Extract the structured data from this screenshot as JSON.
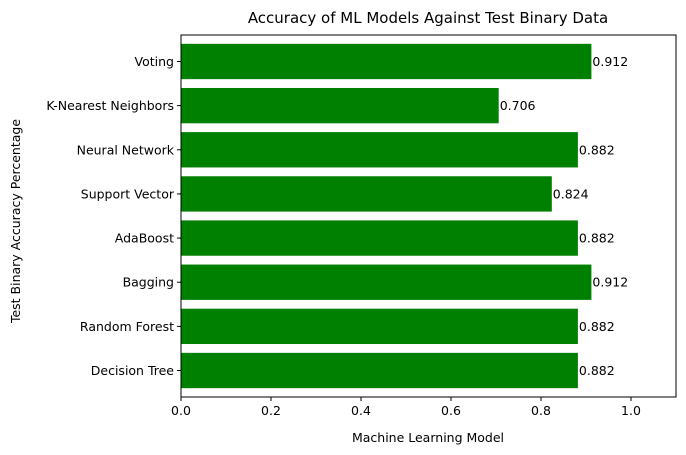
{
  "chart_data": {
    "type": "bar",
    "orientation": "horizontal",
    "title": "Accuracy of ML Models Against Test Binary Data",
    "xlabel": "Machine Learning Model",
    "ylabel": "Test Binary Accuracy Percentage",
    "categories": [
      "Decision Tree",
      "Random Forest",
      "Bagging",
      "AdaBoost",
      "Support Vector",
      "Neural Network",
      "K-Nearest Neighbors",
      "Voting"
    ],
    "values": [
      0.882,
      0.882,
      0.912,
      0.882,
      0.824,
      0.882,
      0.706,
      0.912
    ],
    "value_labels": [
      "0.882",
      "0.882",
      "0.912",
      "0.882",
      "0.824",
      "0.882",
      "0.706",
      "0.912"
    ],
    "xlim": [
      0,
      1.1
    ],
    "xticks": [
      0.0,
      0.2,
      0.4,
      0.6,
      0.8,
      1.0
    ],
    "xtick_labels": [
      "0.0",
      "0.2",
      "0.4",
      "0.6",
      "0.8",
      "1.0"
    ],
    "bar_color": "#008000",
    "grid": false,
    "legend": "none"
  }
}
